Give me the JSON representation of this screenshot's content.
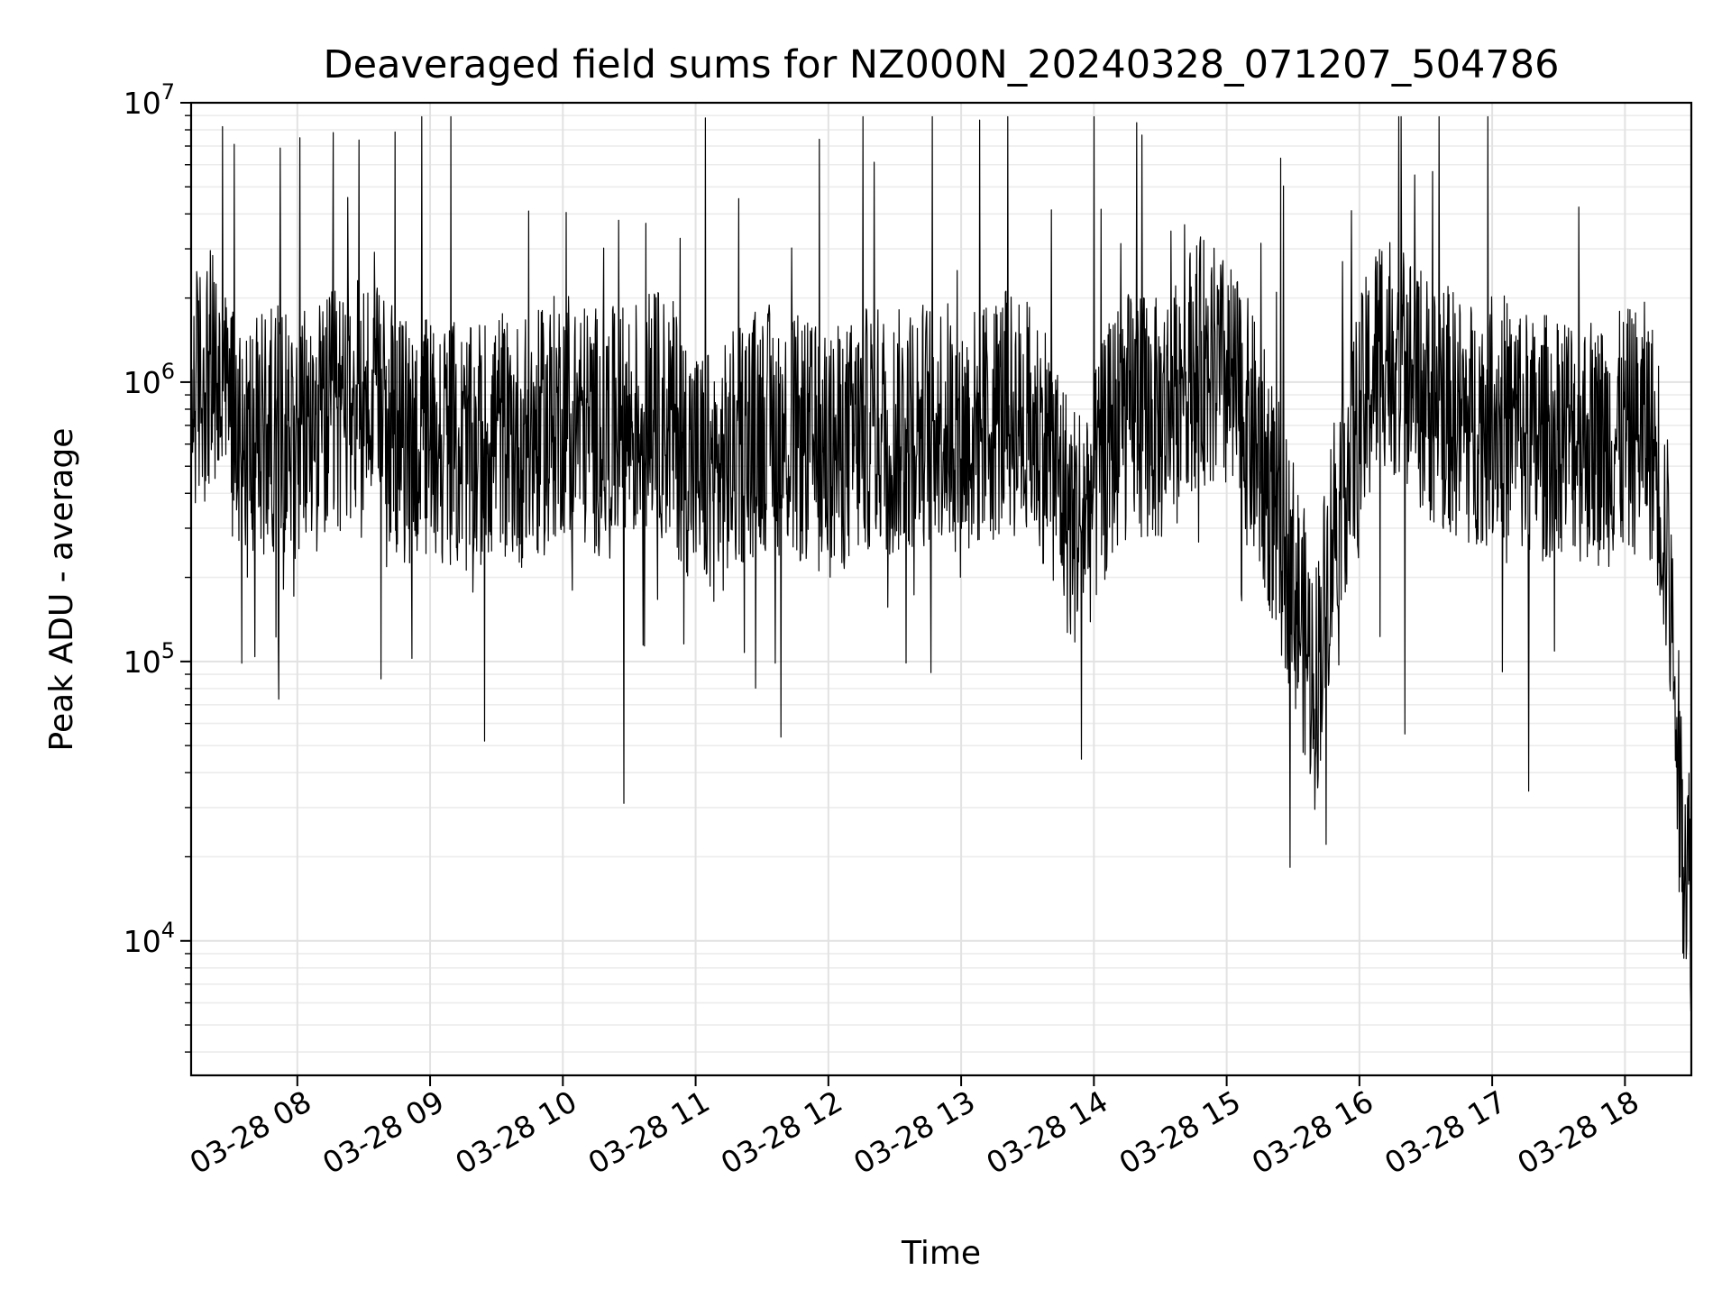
{
  "chart_data": {
    "type": "line",
    "title": "Deaveraged field sums for NZ000N_20240328_071207_504786",
    "xlabel": "Time",
    "ylabel": "Peak ADU - average",
    "yscale": "log",
    "ylim": [
      3300,
      10000000
    ],
    "xlim": [
      "2024-03-28 07:12",
      "2024-03-28 18:30"
    ],
    "grid": true,
    "legend": "none",
    "line_color": "#000000",
    "x_ticks": [
      "03-28 08",
      "03-28 09",
      "03-28 10",
      "03-28 11",
      "03-28 12",
      "03-28 13",
      "03-28 14",
      "03-28 15",
      "03-28 16",
      "03-28 17",
      "03-28 18"
    ],
    "y_ticks": [
      {
        "base": "10",
        "exp": "4",
        "value": 10000
      },
      {
        "base": "10",
        "exp": "5",
        "value": 100000
      },
      {
        "base": "10",
        "exp": "6",
        "value": 1000000
      },
      {
        "base": "10",
        "exp": "7",
        "value": 10000000
      }
    ],
    "series": [
      {
        "x": [
          "2024-03-28 07:12",
          "2024-03-28 07:20",
          "2024-03-28 07:30",
          "2024-03-28 07:40",
          "2024-03-28 07:50",
          "2024-03-28 08:00",
          "2024-03-28 08:10",
          "2024-03-28 08:20",
          "2024-03-28 08:30",
          "2024-03-28 08:40",
          "2024-03-28 08:50",
          "2024-03-28 09:00",
          "2024-03-28 09:10",
          "2024-03-28 09:20",
          "2024-03-28 09:30",
          "2024-03-28 09:40",
          "2024-03-28 09:50",
          "2024-03-28 10:00",
          "2024-03-28 10:10",
          "2024-03-28 10:20",
          "2024-03-28 10:30",
          "2024-03-28 10:40",
          "2024-03-28 10:50",
          "2024-03-28 11:00",
          "2024-03-28 11:10",
          "2024-03-28 11:20",
          "2024-03-28 11:30",
          "2024-03-28 11:40",
          "2024-03-28 11:50",
          "2024-03-28 12:00",
          "2024-03-28 12:10",
          "2024-03-28 12:20",
          "2024-03-28 12:30",
          "2024-03-28 12:40",
          "2024-03-28 12:50",
          "2024-03-28 13:00",
          "2024-03-28 13:10",
          "2024-03-28 13:20",
          "2024-03-28 13:30",
          "2024-03-28 13:40",
          "2024-03-28 13:50",
          "2024-03-28 14:00",
          "2024-03-28 14:10",
          "2024-03-28 14:20",
          "2024-03-28 14:30",
          "2024-03-28 14:40",
          "2024-03-28 14:50",
          "2024-03-28 15:00",
          "2024-03-28 15:10",
          "2024-03-28 15:20",
          "2024-03-28 15:30",
          "2024-03-28 15:40",
          "2024-03-28 15:50",
          "2024-03-28 16:00",
          "2024-03-28 16:10",
          "2024-03-28 16:20",
          "2024-03-28 16:30",
          "2024-03-28 16:40",
          "2024-03-28 16:50",
          "2024-03-28 17:00",
          "2024-03-28 17:10",
          "2024-03-28 17:20",
          "2024-03-28 17:30",
          "2024-03-28 17:40",
          "2024-03-28 17:50",
          "2024-03-28 18:00",
          "2024-03-28 18:10",
          "2024-03-28 18:15",
          "2024-03-28 18:20",
          "2024-03-28 18:25",
          "2024-03-28 18:30"
        ],
        "y": [
          900000,
          1100000,
          800000,
          600000,
          700000,
          650000,
          700000,
          800000,
          900000,
          700000,
          600000,
          650000,
          600000,
          550000,
          700000,
          600000,
          650000,
          800000,
          700000,
          650000,
          700000,
          800000,
          700000,
          500000,
          450000,
          600000,
          700000,
          650000,
          600000,
          550000,
          600000,
          700000,
          650000,
          700000,
          750000,
          650000,
          700000,
          800000,
          700000,
          600000,
          300000,
          400000,
          700000,
          800000,
          700000,
          1100000,
          1200000,
          1000000,
          700000,
          400000,
          200000,
          80000,
          400000,
          700000,
          1400000,
          1200000,
          900000,
          800000,
          700000,
          800000,
          700000,
          600000,
          700000,
          650000,
          600000,
          650000,
          700000,
          500000,
          200000,
          30000,
          15000
        ]
      }
    ]
  }
}
